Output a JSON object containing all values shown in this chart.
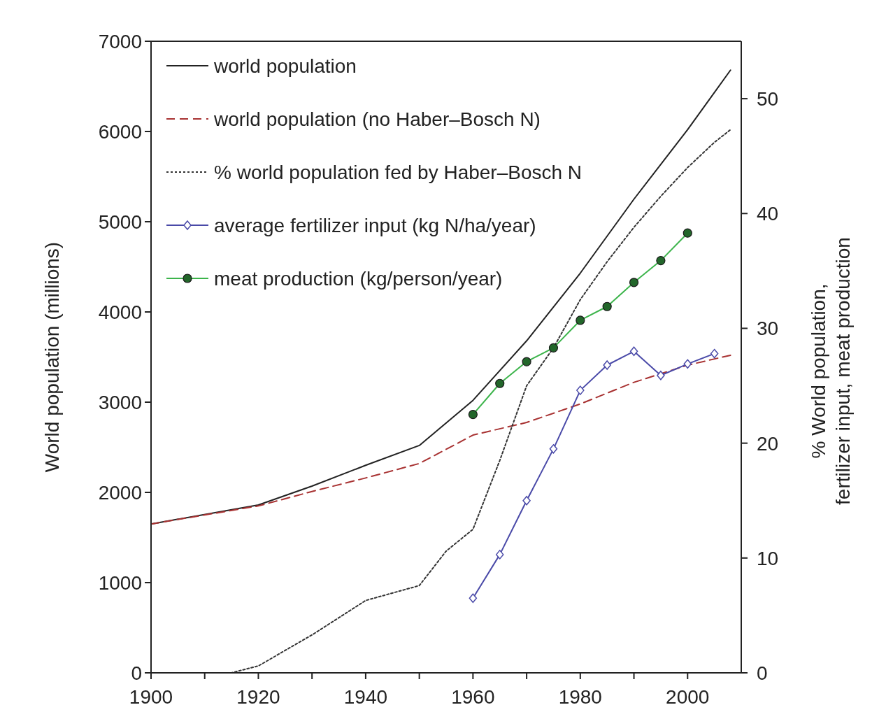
{
  "chart_data": {
    "type": "line",
    "xlabel": null,
    "ylabel": "World population (millions)",
    "y2label": "% World population,\nfertilizer input, meat production",
    "xlim": [
      1900,
      2010
    ],
    "xticks": [
      1900,
      {
        "value": 1910,
        "label": null
      },
      1920,
      {
        "value": 1930,
        "label": null
      },
      1940,
      {
        "value": 1950,
        "label": null
      },
      1960,
      {
        "value": 1970,
        "label": null
      },
      1980,
      {
        "value": 1990,
        "label": null
      },
      2000
    ],
    "ylim": [
      0,
      7000
    ],
    "yticks": [
      0,
      1000,
      2000,
      3000,
      4000,
      5000,
      6000,
      7000
    ],
    "y2lim": [
      0,
      55
    ],
    "y2ticks": [
      0,
      10,
      20,
      30,
      40,
      50
    ],
    "grid": false,
    "legend": "top left",
    "series": [
      {
        "name": "world population",
        "color": "#222222",
        "line_style": "solid",
        "marker": "none",
        "x": [
          1900,
          1920,
          1930,
          1940,
          1950,
          1960,
          1970,
          1980,
          1990,
          2000,
          2008
        ],
        "values": [
          1650,
          1860,
          2070,
          2300,
          2520,
          3020,
          3680,
          4430,
          5250,
          6020,
          6680
        ]
      },
      {
        "name": "world population (no Haber–Bosch N)",
        "color": "#a83232",
        "line_style": "dashed",
        "marker": "none",
        "x": [
          1900,
          1920,
          1930,
          1940,
          1950,
          1960,
          1970,
          1980,
          1990,
          2000,
          2008
        ],
        "values": [
          1650,
          1850,
          2010,
          2160,
          2320,
          2635,
          2775,
          2980,
          3220,
          3410,
          3520
        ]
      },
      {
        "name": "% world population fed by Haber–Bosch N",
        "color": "#333333",
        "line_style": "dotted",
        "marker": "none",
        "axis": "y2",
        "x": [
          1900,
          1915,
          1920,
          1930,
          1940,
          1950,
          1955,
          1960,
          1965,
          1970,
          1975,
          1980,
          1985,
          1990,
          1995,
          2000,
          2005,
          2008
        ],
        "values": [
          0,
          0,
          0.6,
          3.3,
          6.3,
          7.6,
          10.6,
          12.5,
          18.5,
          25.0,
          28.3,
          32.5,
          35.8,
          38.8,
          41.5,
          44.0,
          46.2,
          47.3
        ]
      },
      {
        "name": "average fertilizer input (kg N/ha/year)",
        "color": "#4a4aa8",
        "line_style": "solid",
        "marker": "diamond",
        "axis": "y2",
        "x": [
          1960,
          1965,
          1970,
          1975,
          1980,
          1985,
          1990,
          1995,
          2000,
          2005
        ],
        "values": [
          6.5,
          10.3,
          15.0,
          19.5,
          24.6,
          26.8,
          28.0,
          25.9,
          26.9,
          27.8
        ]
      },
      {
        "name": "meat production (kg/person/year)",
        "color": "#3cb44b",
        "line_style": "solid",
        "marker": "circle",
        "axis": "y2",
        "x": [
          1960,
          1965,
          1970,
          1975,
          1980,
          1985,
          1990,
          1995,
          2000
        ],
        "values": [
          22.5,
          25.2,
          27.1,
          28.3,
          30.7,
          31.9,
          34.0,
          35.9,
          38.3
        ]
      }
    ]
  }
}
